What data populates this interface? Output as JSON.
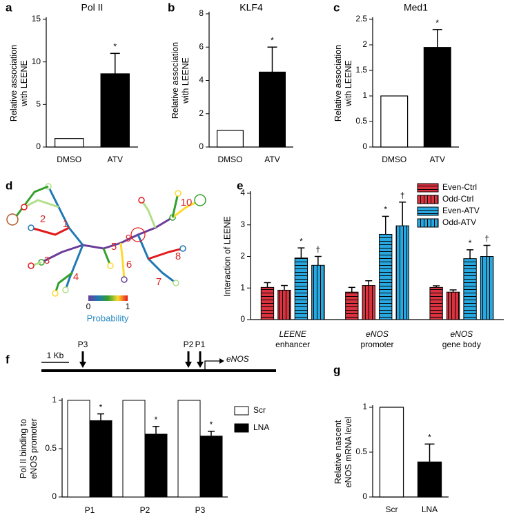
{
  "chart_data": [
    {
      "type": "bar",
      "panel": "a",
      "title": "Pol II",
      "ylabel": [
        "Relative association",
        "with LEENE"
      ],
      "categories": [
        "DMSO",
        "ATV"
      ],
      "values": [
        1,
        8.6
      ],
      "errors": [
        null,
        2.4
      ],
      "annotations": [
        null,
        "*"
      ],
      "colors": [
        "#ffffff",
        "#000000"
      ],
      "ylim": [
        0,
        15
      ],
      "yticks": [
        0,
        5,
        10,
        15
      ]
    },
    {
      "type": "bar",
      "panel": "b",
      "title": "KLF4",
      "ylabel": [
        "Relative association",
        "with LEENE"
      ],
      "categories": [
        "DMSO",
        "ATV"
      ],
      "values": [
        1,
        4.5
      ],
      "errors": [
        null,
        1.5
      ],
      "annotations": [
        null,
        "*"
      ],
      "colors": [
        "#ffffff",
        "#000000"
      ],
      "ylim": [
        0,
        8
      ],
      "yticks": [
        0,
        2,
        4,
        6,
        8
      ]
    },
    {
      "type": "bar",
      "panel": "c",
      "title": "Med1",
      "ylabel": [
        "Relative association",
        "with LEENE"
      ],
      "categories": [
        "DMSO",
        "ATV"
      ],
      "values": [
        1,
        1.95
      ],
      "errors": [
        null,
        0.35
      ],
      "annotations": [
        null,
        "*"
      ],
      "colors": [
        "#ffffff",
        "#000000"
      ],
      "ylim": [
        0,
        2.5
      ],
      "yticks": [
        0,
        0.5,
        1,
        1.5,
        2,
        2.5
      ]
    },
    {
      "type": "grouped_bar",
      "panel": "e",
      "ylabel": [
        "Interaction of LEENE"
      ],
      "categories": [
        [
          "LEENE",
          "enhancer"
        ],
        [
          "eNOS",
          "promoter"
        ],
        [
          "eNOS",
          "gene body"
        ]
      ],
      "series": [
        {
          "name": "Even-Ctrl",
          "color": "#d9333f",
          "pattern": "horizontal",
          "values": [
            1.02,
            0.87,
            1.02
          ],
          "errors": [
            0.15,
            0.15,
            0.05
          ],
          "annotations": [
            null,
            null,
            null
          ]
        },
        {
          "name": "Odd-Ctrl",
          "color": "#d9333f",
          "pattern": "vertical",
          "values": [
            0.93,
            1.08,
            0.87
          ],
          "errors": [
            0.15,
            0.15,
            0.07
          ],
          "annotations": [
            null,
            null,
            null
          ]
        },
        {
          "name": "Even-ATV",
          "color": "#29a8e0",
          "pattern": "horizontal",
          "values": [
            1.95,
            2.7,
            1.93
          ],
          "errors": [
            0.32,
            0.57,
            0.28
          ],
          "annotations": [
            "*",
            "*",
            "*"
          ]
        },
        {
          "name": "Odd-ATV",
          "color": "#29a8e0",
          "pattern": "vertical",
          "values": [
            1.72,
            2.97,
            2.0
          ],
          "errors": [
            0.28,
            0.75,
            0.35
          ],
          "annotations": [
            "†",
            "†",
            "†"
          ]
        }
      ],
      "ylim": [
        0,
        4
      ],
      "yticks": [
        0,
        1,
        2,
        3,
        4
      ],
      "legend": "upper right"
    },
    {
      "type": "grouped_bar",
      "panel": "f",
      "ylabel": [
        "Pol II binding to",
        "eNOS promoter"
      ],
      "gene_map": {
        "scale": "1 Kb",
        "sites": [
          "P3",
          "P2",
          "P1"
        ],
        "gene": "eNOS"
      },
      "categories": [
        "P1",
        "P2",
        "P3"
      ],
      "series": [
        {
          "name": "Scr",
          "color": "#ffffff",
          "values": [
            1,
            1,
            1
          ],
          "errors": [
            null,
            null,
            null
          ],
          "annotations": [
            null,
            null,
            null
          ]
        },
        {
          "name": "LNA",
          "color": "#000000",
          "values": [
            0.79,
            0.65,
            0.63
          ],
          "errors": [
            0.07,
            0.08,
            0.05
          ],
          "annotations": [
            "*",
            "*",
            "*"
          ]
        }
      ],
      "ylim": [
        0,
        1
      ],
      "yticks": [
        0,
        0.5,
        1
      ],
      "legend": "right"
    },
    {
      "type": "bar",
      "panel": "g",
      "ylabel": [
        "Relative nascent",
        "eNOS mRNA level"
      ],
      "categories": [
        "Scr",
        "LNA"
      ],
      "values": [
        1,
        0.39
      ],
      "errors": [
        null,
        0.2
      ],
      "annotations": [
        null,
        "*"
      ],
      "colors": [
        "#ffffff",
        "#000000"
      ],
      "ylim": [
        0,
        1
      ],
      "yticks": [
        0,
        0.5,
        1
      ]
    }
  ],
  "structure_diagram": {
    "panel": "d",
    "labels": [
      "1",
      "2",
      "3",
      "4",
      "5",
      "6",
      "7",
      "8",
      "9",
      "10"
    ],
    "colorbar": {
      "low": "0",
      "high": "1",
      "title": "Probability"
    }
  }
}
